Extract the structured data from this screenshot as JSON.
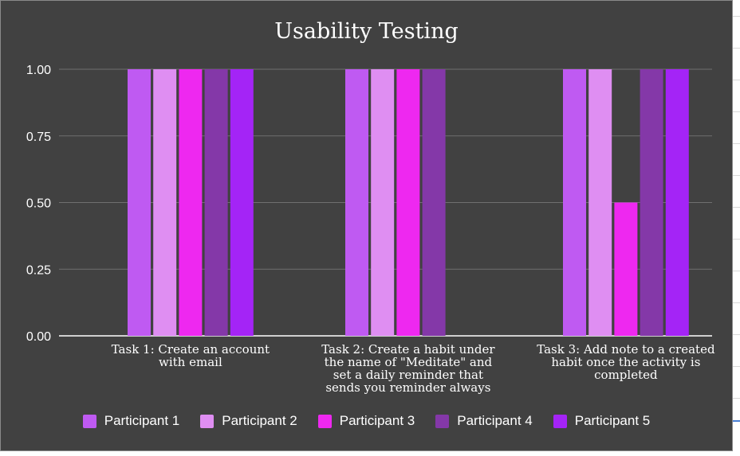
{
  "chart_data": {
    "type": "bar",
    "title": "Usability Testing",
    "xlabel": "",
    "ylabel": "",
    "ylim": [
      0,
      1
    ],
    "yticks": [
      "0.00",
      "0.25",
      "0.50",
      "0.75",
      "1.00"
    ],
    "grid": true,
    "legend_position": "bottom",
    "categories": [
      [
        "Task 1: Create an account",
        "with email"
      ],
      [
        "Task 2: Create a habit under",
        "the name of \"Meditate\" and",
        "set a daily reminder that",
        "sends you reminder always"
      ],
      [
        "Task 3: Add note to a created",
        "habit once the activity is",
        "completed"
      ]
    ],
    "series": [
      {
        "name": "Participant 1",
        "color": "#bf5af2",
        "values": [
          1,
          1,
          1
        ]
      },
      {
        "name": "Participant 2",
        "color": "#df8ef2",
        "values": [
          1,
          1,
          1
        ]
      },
      {
        "name": "Participant 3",
        "color": "#ee28f0",
        "values": [
          1,
          1,
          0.5
        ]
      },
      {
        "name": "Participant 4",
        "color": "#8438a8",
        "values": [
          1,
          1,
          1
        ]
      },
      {
        "name": "Participant 5",
        "color": "#a424f6",
        "values": [
          1,
          0,
          1
        ]
      }
    ]
  }
}
